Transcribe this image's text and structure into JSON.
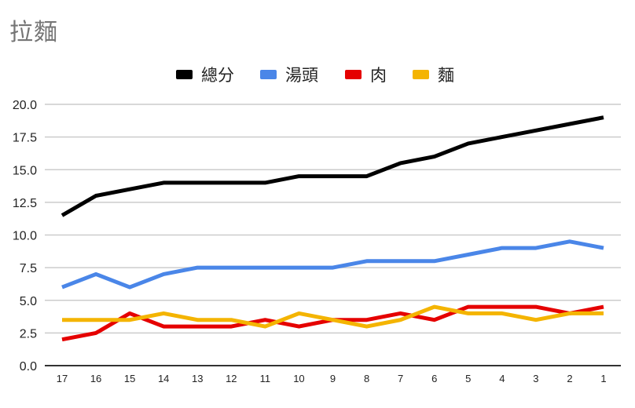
{
  "chart_data": {
    "type": "line",
    "title": "拉麵",
    "xlabel": "",
    "ylabel": "",
    "categories": [
      "17",
      "16",
      "15",
      "14",
      "13",
      "12",
      "11",
      "10",
      "9",
      "8",
      "7",
      "6",
      "5",
      "4",
      "3",
      "2",
      "1"
    ],
    "ylim": [
      0,
      20
    ],
    "yticks": [
      "0.0",
      "2.5",
      "5.0",
      "7.5",
      "10.0",
      "12.5",
      "15.0",
      "17.5",
      "20.0"
    ],
    "grid": true,
    "legend_position": "top",
    "series": [
      {
        "name": "總分",
        "color": "#000000",
        "values": [
          11.5,
          13,
          13.5,
          14,
          14,
          14,
          14,
          14.5,
          14.5,
          14.5,
          15.5,
          16,
          17,
          17.5,
          18,
          18.5,
          19
        ]
      },
      {
        "name": "湯頭",
        "color": "#4a86e8",
        "values": [
          6,
          7,
          6,
          7,
          7.5,
          7.5,
          7.5,
          7.5,
          7.5,
          8,
          8,
          8,
          8.5,
          9,
          9,
          9.5,
          9
        ]
      },
      {
        "name": "肉",
        "color": "#e50000",
        "values": [
          2,
          2.5,
          4,
          3,
          3,
          3,
          3.5,
          3,
          3.5,
          3.5,
          4,
          3.5,
          4.5,
          4.5,
          4.5,
          4,
          4.5
        ]
      },
      {
        "name": "麵",
        "color": "#f4b400",
        "values": [
          3.5,
          3.5,
          3.5,
          4,
          3.5,
          3.5,
          3,
          4,
          3.5,
          3,
          3.5,
          4.5,
          4,
          4,
          3.5,
          4,
          4
        ]
      }
    ]
  }
}
